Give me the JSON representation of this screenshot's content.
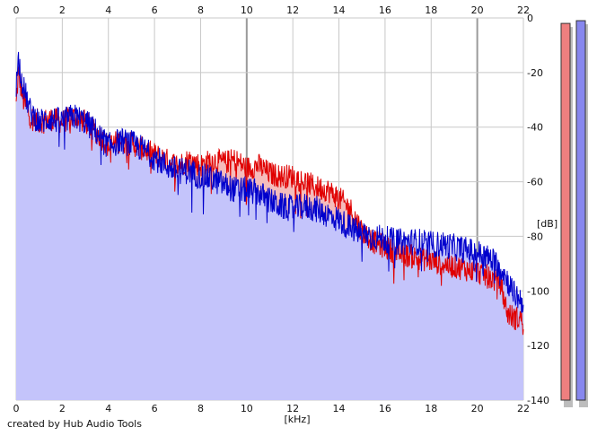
{
  "credit": "created by Hub Audio Tools",
  "colors": {
    "background": "#ffffff",
    "grid": "#c8c8c8",
    "grid_major": "#9a9a9a",
    "fill_blue": "#c4c4fb",
    "fill_red": "#f5bcbc",
    "line_blue": "#0000cc",
    "line_red": "#e00000",
    "meter_left": "#ee7f7f",
    "meter_right": "#8787ee"
  },
  "chart_data": {
    "type": "area",
    "xlabel": "[kHz]",
    "ylabel": "[dB]",
    "xlim": [
      0,
      22
    ],
    "ylim": [
      -140,
      0
    ],
    "x_ticks": [
      0,
      2,
      4,
      6,
      8,
      10,
      12,
      14,
      16,
      18,
      20,
      22
    ],
    "x_tick_labels_top": [
      "0",
      "2",
      "4",
      "6",
      "8",
      "10",
      "12",
      "14",
      "16",
      "18",
      "20",
      "22"
    ],
    "x_tick_labels_bottom": [
      "0",
      "2",
      "4",
      "6",
      "8",
      "10",
      "12",
      "14",
      "16",
      "18",
      "20",
      "22"
    ],
    "y_ticks": [
      0,
      -20,
      -40,
      -60,
      -80,
      -100,
      -120,
      -140
    ],
    "y_tick_labels": [
      "0",
      "-20",
      "-40",
      "-60",
      "-80",
      "-100",
      "-120",
      "-140"
    ],
    "grid": true,
    "series": [
      {
        "color": "#e00000",
        "x": [
          0,
          0.1,
          0.3,
          0.6,
          1.0,
          1.5,
          2.0,
          2.5,
          3.0,
          3.5,
          4.0,
          4.5,
          5.0,
          5.5,
          6.0,
          6.5,
          7.0,
          7.5,
          8.0,
          8.5,
          9.0,
          9.5,
          10.0,
          10.5,
          11.0,
          11.5,
          12.0,
          12.5,
          13.0,
          13.5,
          14.0,
          14.5,
          15.0,
          15.5,
          16.0,
          16.5,
          17.0,
          17.5,
          18.0,
          18.5,
          19.0,
          19.5,
          20.0,
          20.5,
          21.0,
          21.3,
          21.6,
          22.0
        ],
        "values": [
          -32,
          -20,
          -30,
          -36,
          -38,
          -37,
          -38,
          -36,
          -38,
          -42,
          -47,
          -45,
          -46,
          -48,
          -50,
          -52,
          -54,
          -52,
          -54,
          -52,
          -53,
          -52,
          -55,
          -54,
          -57,
          -58,
          -58,
          -60,
          -62,
          -63,
          -66,
          -70,
          -78,
          -82,
          -84,
          -86,
          -87,
          -88,
          -89,
          -90,
          -91,
          -92,
          -93,
          -95,
          -97,
          -108,
          -110,
          -110
        ]
      },
      {
        "color": "#0000cc",
        "x": [
          0,
          0.1,
          0.3,
          0.6,
          1.0,
          1.5,
          2.0,
          2.5,
          3.0,
          3.5,
          4.0,
          4.5,
          5.0,
          5.5,
          6.0,
          6.5,
          7.0,
          7.5,
          8.0,
          8.5,
          9.0,
          9.5,
          10.0,
          10.5,
          11.0,
          11.5,
          12.0,
          12.5,
          13.0,
          13.5,
          14.0,
          14.5,
          15.0,
          15.5,
          16.0,
          16.5,
          17.0,
          17.5,
          18.0,
          18.5,
          19.0,
          19.5,
          20.0,
          20.5,
          21.0,
          21.3,
          21.6,
          22.0
        ],
        "values": [
          -25,
          -15,
          -25,
          -34,
          -38,
          -37,
          -38,
          -36,
          -38,
          -42,
          -47,
          -45,
          -46,
          -48,
          -51,
          -54,
          -56,
          -56,
          -58,
          -59,
          -61,
          -63,
          -63,
          -64,
          -67,
          -69,
          -70,
          -69,
          -70,
          -72,
          -74,
          -77,
          -79,
          -80,
          -81,
          -82,
          -82,
          -82,
          -83,
          -83,
          -84,
          -85,
          -86,
          -88,
          -91,
          -96,
          -101,
          -104
        ]
      }
    ]
  },
  "meters": {
    "left_level_db": -2,
    "right_level_db": -1
  }
}
